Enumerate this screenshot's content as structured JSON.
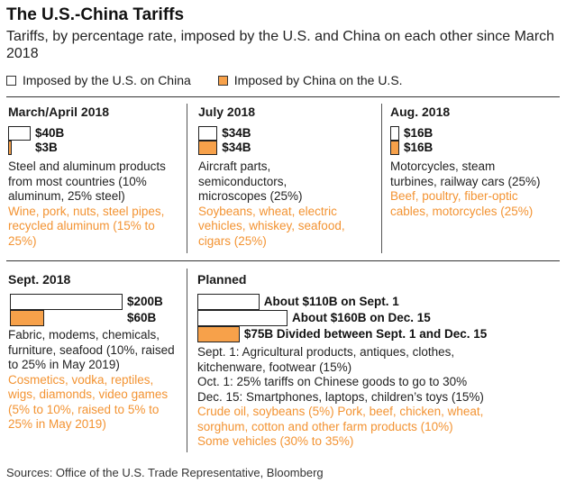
{
  "title": "The U.S.-China Tariffs",
  "subtitle": "Tariffs, by percentage rate, imposed by the U.S. and China on each other since March 2018",
  "legend": {
    "us": "Imposed by the U.S. on China",
    "china": "Imposed by China on the U.S."
  },
  "colors": {
    "us": "#ffffff",
    "china": "#f7a14a",
    "china_text": "#f39332",
    "border": "#222222"
  },
  "source": "Sources: Office of the U.S. Trade Representative, Bloomberg",
  "chart_data": {
    "type": "bar",
    "unit": "$B",
    "panels": [
      {
        "period": "March/April 2018",
        "bars": [
          {
            "series": "us",
            "value": 40,
            "label": "$40B"
          },
          {
            "series": "china",
            "value": 3,
            "label": "$3B"
          }
        ],
        "us_goods": "Steel and aluminum products from most countries (10% aluminum, 25% steel)",
        "china_goods": "Wine, pork, nuts, steel pipes, recycled aluminum (15% to 25%)"
      },
      {
        "period": "July 2018",
        "bars": [
          {
            "series": "us",
            "value": 34,
            "label": "$34B"
          },
          {
            "series": "china",
            "value": 34,
            "label": "$34B"
          }
        ],
        "us_goods": "Aircraft parts, semiconductors, microscopes (25%)",
        "china_goods": "Soybeans, wheat, electric vehicles, whiskey, seafood, cigars (25%)"
      },
      {
        "period": "Aug. 2018",
        "bars": [
          {
            "series": "us",
            "value": 16,
            "label": "$16B"
          },
          {
            "series": "china",
            "value": 16,
            "label": "$16B"
          }
        ],
        "us_goods": "Motorcycles, steam turbines, railway cars (25%)",
        "china_goods": "Beef, poultry, fiber-optic cables, motorcycles (25%)"
      },
      {
        "period": "Sept. 2018",
        "bars": [
          {
            "series": "us",
            "value": 200,
            "label": "$200B"
          },
          {
            "series": "china",
            "value": 60,
            "label": "$60B"
          }
        ],
        "us_goods": "Fabric, modems, chemicals, furniture, seafood (10%, raised to 25% in May 2019)",
        "china_goods": "Cosmetics, vodka, reptiles, wigs, diamonds, video games (5% to 10%, raised to 5% to 25% in May 2019)"
      },
      {
        "period": "Planned",
        "bars": [
          {
            "series": "us",
            "value": 110,
            "label": "About $110B on Sept. 1"
          },
          {
            "series": "us",
            "value": 160,
            "label": "About $160B on Dec. 15"
          },
          {
            "series": "china",
            "value": 75,
            "label": "$75B Divided between Sept. 1 and Dec. 15"
          }
        ],
        "us_goods_lines": [
          "Sept. 1: Agricultural products, antiques, clothes, kitchenware, footwear (15%)",
          "Oct. 1: 25% tariffs on Chinese goods to go to 30%",
          "Dec. 15: Smartphones, laptops, children’s toys (15%)"
        ],
        "china_goods_lines": [
          "Crude oil, soybeans (5%) Pork, beef, chicken, wheat, sorghum, cotton and other farm products (10%)",
          "Some vehicles (30% to 35%)"
        ]
      }
    ]
  }
}
